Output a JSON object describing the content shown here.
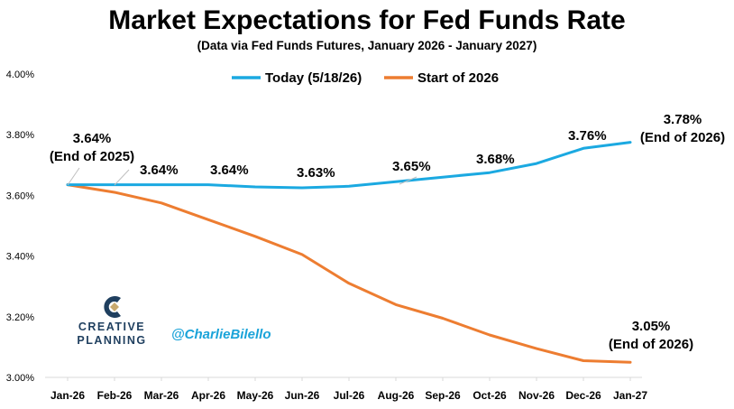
{
  "chart_data": {
    "type": "line",
    "title": "Market Expectations for Fed Funds Rate",
    "subtitle": "(Data via Fed Funds Futures, January 2026 - January 2027)",
    "categories": [
      "Jan-26",
      "Feb-26",
      "Mar-26",
      "Apr-26",
      "May-26",
      "Jun-26",
      "Jul-26",
      "Aug-26",
      "Sep-26",
      "Oct-26",
      "Nov-26",
      "Dec-26",
      "Jan-27"
    ],
    "ylim": [
      3.0,
      4.0
    ],
    "yticks": [
      3.0,
      3.2,
      3.4,
      3.6,
      3.8,
      4.0
    ],
    "ytick_labels": [
      "3.00%",
      "3.20%",
      "3.40%",
      "3.60%",
      "3.80%",
      "4.00%"
    ],
    "legend_position": "top-center",
    "grid": false,
    "series": [
      {
        "name": "Today (5/18/26)",
        "color": "#1ba9e1",
        "values": [
          3.635,
          3.635,
          3.635,
          3.635,
          3.628,
          3.625,
          3.63,
          3.645,
          3.66,
          3.675,
          3.705,
          3.755,
          3.775
        ]
      },
      {
        "name": "Start of 2026",
        "color": "#ed7d31",
        "values": [
          3.635,
          3.61,
          3.575,
          3.52,
          3.465,
          3.405,
          3.31,
          3.24,
          3.195,
          3.14,
          3.095,
          3.055,
          3.05
        ]
      }
    ],
    "annotations": [
      {
        "id": "jan",
        "lines": [
          "3.64%",
          "(End of 2025)"
        ]
      },
      {
        "id": "feb",
        "lines": [
          "3.64%"
        ]
      },
      {
        "id": "apr",
        "lines": [
          "3.64%"
        ]
      },
      {
        "id": "jun",
        "lines": [
          "3.63%"
        ]
      },
      {
        "id": "aug",
        "lines": [
          "3.65%"
        ]
      },
      {
        "id": "oct",
        "lines": [
          "3.68%"
        ]
      },
      {
        "id": "dec",
        "lines": [
          "3.76%"
        ]
      },
      {
        "id": "jan27_today",
        "lines": [
          "3.78%",
          "(End of 2026)"
        ]
      },
      {
        "id": "jan27_start",
        "lines": [
          "3.05%",
          "(End of 2026)"
        ]
      }
    ]
  },
  "branding": {
    "logo_line1": "CREATIVE",
    "logo_line2": "PLANNING",
    "logo_icon": "creative-planning-c-icon",
    "logo_color": "#1f3f5f",
    "logo_accent": "#c8a96e",
    "handle": "@CharlieBilello",
    "handle_color": "#1aa3d9"
  }
}
